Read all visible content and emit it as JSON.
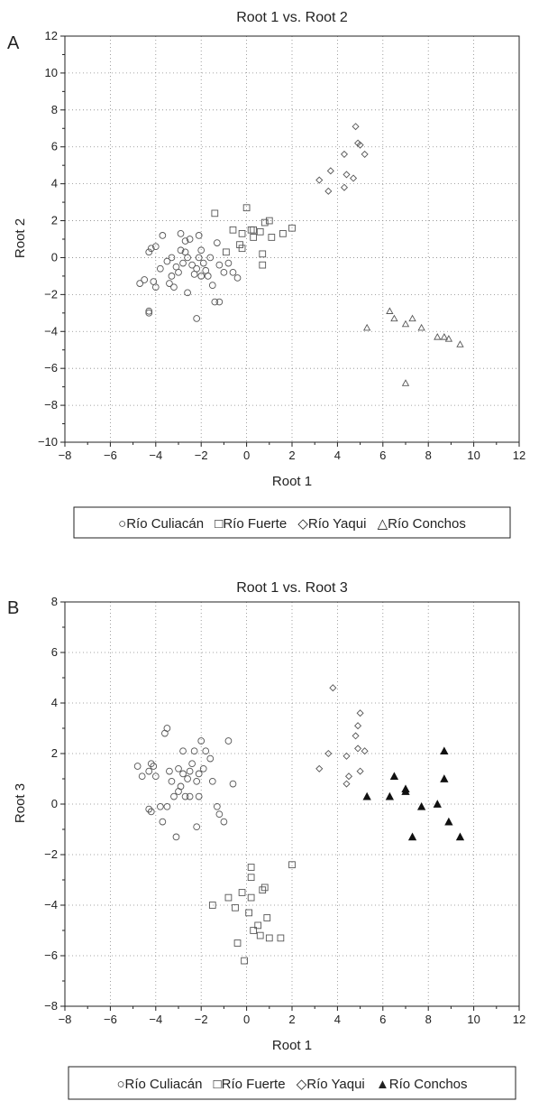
{
  "chart_data": [
    {
      "panel": "A",
      "type": "scatter",
      "title": "Root 1 vs. Root 2",
      "xlabel": "Root 1",
      "ylabel": "Root 2",
      "xlim": [
        -8,
        12
      ],
      "ylim": [
        -10,
        12
      ],
      "xticks": [
        -8,
        -6,
        -4,
        -2,
        0,
        2,
        4,
        6,
        8,
        10,
        12
      ],
      "yticks": [
        -10,
        -8,
        -6,
        -4,
        -2,
        0,
        2,
        4,
        6,
        8,
        10,
        12
      ],
      "grid": true,
      "legend_position": "bottom",
      "series": [
        {
          "name": "Río Culiacán",
          "marker": "circle",
          "points": [
            [
              -4.7,
              -1.4
            ],
            [
              -4.5,
              -1.2
            ],
            [
              -4.3,
              0.3
            ],
            [
              -4.2,
              0.5
            ],
            [
              -4.0,
              0.6
            ],
            [
              -4.1,
              -1.3
            ],
            [
              -4.0,
              -1.6
            ],
            [
              -3.7,
              1.2
            ],
            [
              -3.8,
              -0.6
            ],
            [
              -3.5,
              -0.2
            ],
            [
              -3.4,
              -1.4
            ],
            [
              -3.3,
              -1.0
            ],
            [
              -3.3,
              0.0
            ],
            [
              -3.2,
              -1.6
            ],
            [
              -3.1,
              -0.5
            ],
            [
              -3.0,
              -0.8
            ],
            [
              -2.9,
              0.4
            ],
            [
              -2.9,
              1.3
            ],
            [
              -2.8,
              -0.3
            ],
            [
              -2.7,
              0.9
            ],
            [
              -2.7,
              0.3
            ],
            [
              -2.6,
              0.0
            ],
            [
              -2.6,
              -1.9
            ],
            [
              -2.5,
              1.0
            ],
            [
              -2.4,
              -0.4
            ],
            [
              -2.3,
              -0.9
            ],
            [
              -2.2,
              -0.6
            ],
            [
              -2.1,
              0.0
            ],
            [
              -2.1,
              1.2
            ],
            [
              -2.0,
              0.4
            ],
            [
              -2.0,
              -1.0
            ],
            [
              -1.9,
              -0.3
            ],
            [
              -1.8,
              -0.7
            ],
            [
              -1.7,
              -1.0
            ],
            [
              -1.6,
              0.0
            ],
            [
              -1.5,
              -1.5
            ],
            [
              -1.4,
              -2.4
            ],
            [
              -1.3,
              0.8
            ],
            [
              -1.2,
              -0.4
            ],
            [
              -1.2,
              -2.4
            ],
            [
              -1.0,
              -0.8
            ],
            [
              -0.8,
              -0.3
            ],
            [
              -0.6,
              -0.8
            ],
            [
              -0.4,
              -1.1
            ],
            [
              -2.2,
              -3.3
            ],
            [
              -4.3,
              -2.9
            ],
            [
              -4.3,
              -3.0
            ]
          ]
        },
        {
          "name": "Río Fuerte",
          "marker": "square",
          "points": [
            [
              -1.4,
              2.4
            ],
            [
              -0.9,
              0.3
            ],
            [
              -0.6,
              1.5
            ],
            [
              -0.3,
              0.7
            ],
            [
              -0.2,
              1.3
            ],
            [
              -0.2,
              0.5
            ],
            [
              0.0,
              2.7
            ],
            [
              0.2,
              1.5
            ],
            [
              0.3,
              1.5
            ],
            [
              0.3,
              1.1
            ],
            [
              0.6,
              1.4
            ],
            [
              0.7,
              -0.4
            ],
            [
              0.7,
              0.2
            ],
            [
              0.8,
              1.9
            ],
            [
              1.0,
              2.0
            ],
            [
              1.1,
              1.1
            ],
            [
              1.6,
              1.3
            ],
            [
              2.0,
              1.6
            ]
          ]
        },
        {
          "name": "Río Yaqui",
          "marker": "diamond",
          "points": [
            [
              3.2,
              4.2
            ],
            [
              3.6,
              3.6
            ],
            [
              3.7,
              4.7
            ],
            [
              4.3,
              5.6
            ],
            [
              4.3,
              3.8
            ],
            [
              4.4,
              4.5
            ],
            [
              4.7,
              4.3
            ],
            [
              4.8,
              7.1
            ],
            [
              4.9,
              6.2
            ],
            [
              5.0,
              6.1
            ],
            [
              5.2,
              5.6
            ]
          ]
        },
        {
          "name": "Río Conchos",
          "marker": "triangle",
          "points": [
            [
              5.3,
              -3.8
            ],
            [
              6.3,
              -2.9
            ],
            [
              6.5,
              -3.3
            ],
            [
              7.0,
              -3.6
            ],
            [
              7.3,
              -3.3
            ],
            [
              7.7,
              -3.8
            ],
            [
              8.4,
              -4.3
            ],
            [
              8.7,
              -4.3
            ],
            [
              8.9,
              -4.4
            ],
            [
              9.4,
              -4.7
            ],
            [
              7.0,
              -6.8
            ]
          ]
        }
      ]
    },
    {
      "panel": "B",
      "type": "scatter",
      "title": "Root 1 vs. Root 3",
      "xlabel": "Root 1",
      "ylabel": "Root 3",
      "xlim": [
        -8,
        12
      ],
      "ylim": [
        -8,
        8
      ],
      "xticks": [
        -8,
        -6,
        -4,
        -2,
        0,
        2,
        4,
        6,
        8,
        10,
        12
      ],
      "yticks": [
        -8,
        -6,
        -4,
        -2,
        0,
        2,
        4,
        6,
        8
      ],
      "grid": true,
      "legend_position": "bottom",
      "series": [
        {
          "name": "Río Culiacán",
          "marker": "circle",
          "points": [
            [
              -4.8,
              1.5
            ],
            [
              -4.6,
              1.1
            ],
            [
              -4.3,
              1.3
            ],
            [
              -4.2,
              1.6
            ],
            [
              -4.1,
              1.5
            ],
            [
              -4.0,
              1.1
            ],
            [
              -4.3,
              -0.2
            ],
            [
              -4.2,
              -0.3
            ],
            [
              -3.8,
              -0.1
            ],
            [
              -3.6,
              2.8
            ],
            [
              -3.5,
              3.0
            ],
            [
              -3.5,
              -0.1
            ],
            [
              -3.4,
              1.3
            ],
            [
              -3.3,
              0.9
            ],
            [
              -3.2,
              0.3
            ],
            [
              -3.1,
              -1.3
            ],
            [
              -3.0,
              1.4
            ],
            [
              -3.0,
              0.5
            ],
            [
              -2.9,
              0.7
            ],
            [
              -2.8,
              2.1
            ],
            [
              -2.8,
              1.2
            ],
            [
              -2.7,
              0.3
            ],
            [
              -2.6,
              1.0
            ],
            [
              -2.5,
              1.3
            ],
            [
              -2.5,
              0.3
            ],
            [
              -2.4,
              1.6
            ],
            [
              -2.3,
              2.1
            ],
            [
              -2.2,
              0.9
            ],
            [
              -2.1,
              1.2
            ],
            [
              -2.0,
              2.5
            ],
            [
              -1.9,
              1.4
            ],
            [
              -1.8,
              2.1
            ],
            [
              -1.6,
              1.8
            ],
            [
              -1.5,
              0.9
            ],
            [
              -1.3,
              -0.1
            ],
            [
              -1.2,
              -0.4
            ],
            [
              -1.0,
              -0.7
            ],
            [
              -0.8,
              2.5
            ],
            [
              -0.6,
              0.8
            ],
            [
              -2.2,
              -0.9
            ],
            [
              -2.1,
              0.3
            ],
            [
              -3.7,
              -0.7
            ]
          ]
        },
        {
          "name": "Río Fuerte",
          "marker": "square",
          "points": [
            [
              -1.5,
              -4.0
            ],
            [
              -0.8,
              -3.7
            ],
            [
              -0.5,
              -4.1
            ],
            [
              -0.4,
              -5.5
            ],
            [
              -0.2,
              -3.5
            ],
            [
              -0.1,
              -6.2
            ],
            [
              0.1,
              -4.3
            ],
            [
              0.2,
              -3.7
            ],
            [
              0.2,
              -2.9
            ],
            [
              0.2,
              -2.5
            ],
            [
              0.3,
              -5.0
            ],
            [
              0.5,
              -4.8
            ],
            [
              0.6,
              -5.2
            ],
            [
              0.7,
              -3.4
            ],
            [
              0.8,
              -3.3
            ],
            [
              0.9,
              -4.5
            ],
            [
              1.0,
              -5.3
            ],
            [
              1.5,
              -5.3
            ],
            [
              2.0,
              -2.4
            ]
          ]
        },
        {
          "name": "Río Yaqui",
          "marker": "diamond",
          "points": [
            [
              3.2,
              1.4
            ],
            [
              3.6,
              2.0
            ],
            [
              3.8,
              4.6
            ],
            [
              4.4,
              1.9
            ],
            [
              4.4,
              0.8
            ],
            [
              4.5,
              1.1
            ],
            [
              4.8,
              2.7
            ],
            [
              4.9,
              3.1
            ],
            [
              4.9,
              2.2
            ],
            [
              5.0,
              1.3
            ],
            [
              5.0,
              3.6
            ],
            [
              5.2,
              2.1
            ]
          ]
        },
        {
          "name": "Río Conchos",
          "marker": "filled-triangle",
          "points": [
            [
              5.3,
              0.3
            ],
            [
              6.3,
              0.3
            ],
            [
              6.5,
              1.1
            ],
            [
              7.0,
              0.6
            ],
            [
              7.0,
              0.5
            ],
            [
              7.3,
              -1.3
            ],
            [
              7.7,
              -0.1
            ],
            [
              8.4,
              0.0
            ],
            [
              8.7,
              2.1
            ],
            [
              8.7,
              1.0
            ],
            [
              8.9,
              -0.7
            ],
            [
              9.4,
              -1.3
            ]
          ]
        }
      ]
    }
  ],
  "legends": [
    {
      "items": [
        {
          "symbol": "○",
          "label": "Río Culiacán"
        },
        {
          "symbol": "□",
          "label": "Río Fuerte"
        },
        {
          "symbol": "◇",
          "label": "Río Yaqui"
        },
        {
          "symbol": "△",
          "label": "Río Conchos"
        }
      ]
    },
    {
      "items": [
        {
          "symbol": "○",
          "label": "Río Culiacán"
        },
        {
          "symbol": "□",
          "label": "Río Fuerte"
        },
        {
          "symbol": "◇",
          "label": "Río Yaqui"
        },
        {
          "symbol": "▲",
          "label": "Río Conchos"
        }
      ]
    }
  ],
  "colors": {
    "marker": "#555555",
    "axis": "#222222",
    "grid": "#888888"
  }
}
